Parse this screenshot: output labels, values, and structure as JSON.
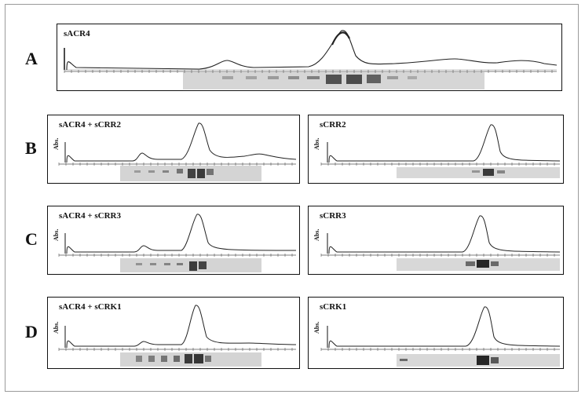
{
  "figure": {
    "rows": [
      {
        "letter": "A",
        "panels": [
          {
            "title": "sACR4",
            "abs": ""
          }
        ]
      },
      {
        "letter": "B",
        "panels": [
          {
            "title": "sACR4 + sCRR2",
            "abs": "Abs."
          },
          {
            "title": "sCRR2",
            "abs": "Abs."
          }
        ]
      },
      {
        "letter": "C",
        "panels": [
          {
            "title": "sACR4 + sCRR3",
            "abs": "Abs."
          },
          {
            "title": "sCRR3",
            "abs": "Abs."
          }
        ]
      },
      {
        "letter": "D",
        "panels": [
          {
            "title": "sACR4 + sCRK1",
            "abs": "Abs."
          },
          {
            "title": "sCRK1",
            "abs": "Abs."
          }
        ]
      }
    ]
  }
}
